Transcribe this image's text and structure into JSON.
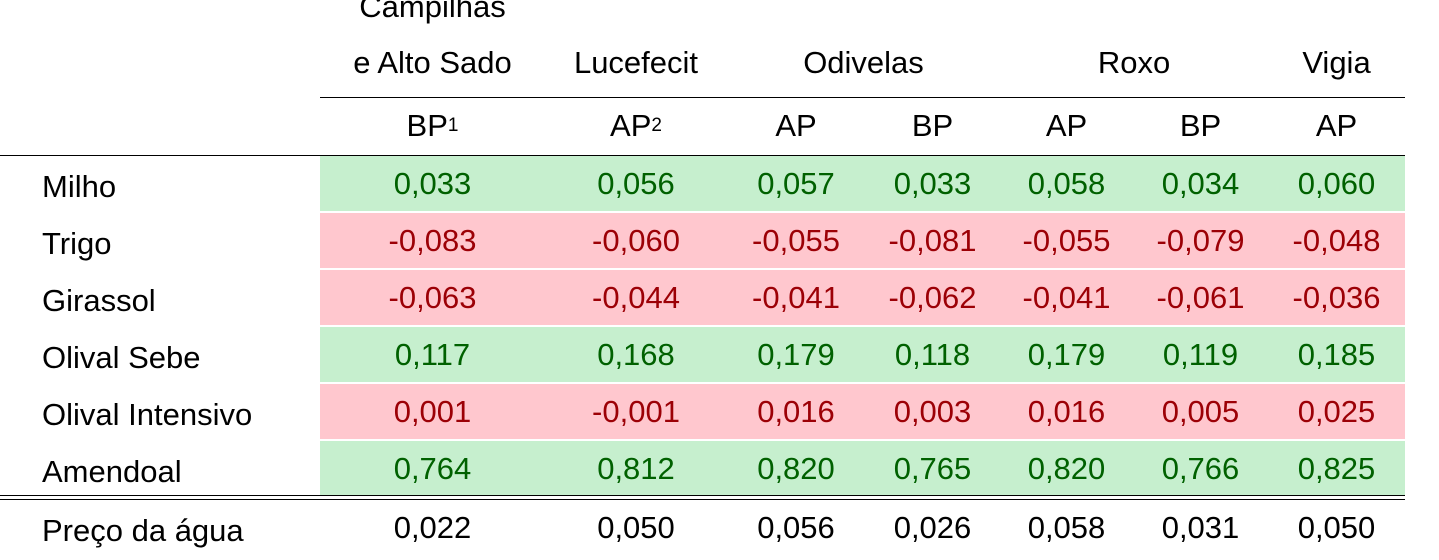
{
  "table": {
    "groups": [
      {
        "label": "Campilhas e Alto Sado",
        "columns": [
          {
            "text": "BP",
            "sup": "1"
          }
        ]
      },
      {
        "label": "Lucefecit",
        "columns": [
          {
            "text": "AP",
            "sup": "2"
          }
        ]
      },
      {
        "label": "Odivelas",
        "columns": [
          {
            "text": "AP"
          },
          {
            "text": "BP"
          }
        ]
      },
      {
        "label": "Roxo",
        "columns": [
          {
            "text": "AP"
          },
          {
            "text": "BP"
          }
        ]
      },
      {
        "label": "Vigia",
        "columns": [
          {
            "text": "AP"
          }
        ]
      }
    ],
    "rows": [
      {
        "label": "Milho",
        "fill": "#c6efce",
        "color": "#006100",
        "values": [
          "0,033",
          "0,056",
          "0,057",
          "0,033",
          "0,058",
          "0,034",
          "0,060"
        ]
      },
      {
        "label": "Trigo",
        "fill": "#ffc7ce",
        "color": "#9c0006",
        "values": [
          "-0,083",
          "-0,060",
          "-0,055",
          "-0,081",
          "-0,055",
          "-0,079",
          "-0,048"
        ]
      },
      {
        "label": "Girassol",
        "fill": "#ffc7ce",
        "color": "#9c0006",
        "values": [
          "-0,063",
          "-0,044",
          "-0,041",
          "-0,062",
          "-0,041",
          "-0,061",
          "-0,036"
        ]
      },
      {
        "label": "Olival Sebe",
        "fill": "#c6efce",
        "color": "#006100",
        "values": [
          "0,117",
          "0,168",
          "0,179",
          "0,118",
          "0,179",
          "0,119",
          "0,185"
        ]
      },
      {
        "label": "Olival Intensivo",
        "fill": "#ffc7ce",
        "color": "#9c0006",
        "values": [
          "0,001",
          "-0,001",
          "0,016",
          "0,003",
          "0,016",
          "0,005",
          "0,025"
        ]
      },
      {
        "label": "Amendoal",
        "fill": "#c6efce",
        "color": "#006100",
        "values": [
          "0,764",
          "0,812",
          "0,820",
          "0,765",
          "0,820",
          "0,766",
          "0,825"
        ]
      },
      {
        "label": "Preço da água",
        "values": [
          "0,022",
          "0,050",
          "0,056",
          "0,026",
          "0,058",
          "0,031",
          "0,050"
        ]
      }
    ]
  }
}
